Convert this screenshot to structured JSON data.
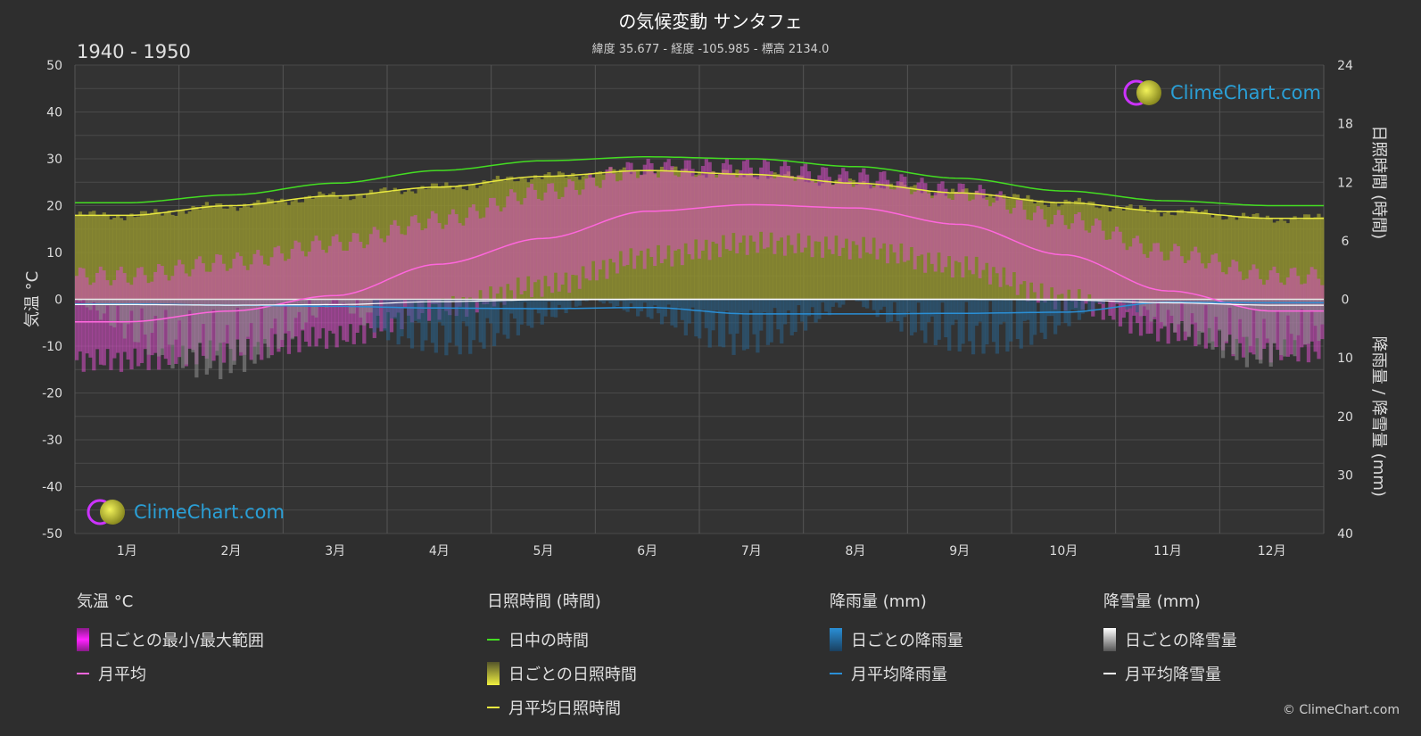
{
  "header": {
    "title": "の気候変動 サンタフェ",
    "subtitle": "緯度 35.677 - 経度 -105.985 - 標高 2134.0",
    "period": "1940 - 1950"
  },
  "watermark": {
    "text": "ClimeChart.com"
  },
  "copyright": "© ClimeChart.com",
  "legend": {
    "temperature": {
      "title": "気温 °C",
      "items": [
        "日ごとの最小/最大範囲",
        "月平均"
      ]
    },
    "sunshine": {
      "title": "日照時間 (時間)",
      "items": [
        "日中の時間",
        "日ごとの日照時間",
        "月平均日照時間"
      ]
    },
    "rain": {
      "title": "降雨量 (mm)",
      "items": [
        "日ごとの降雨量",
        "月平均降雨量"
      ]
    },
    "snow": {
      "title": "降雪量 (mm)",
      "items": [
        "日ごとの降雪量",
        "月平均降雪量"
      ]
    }
  },
  "colors": {
    "background": "#2e2e2e",
    "daylight": "#44dd22",
    "sunshine": "#e8e840",
    "temp_mean": "#ff66dd",
    "temp_range": "#dd22dd",
    "rain": "#2a8fd6",
    "snow": "#ffffff"
  },
  "chart_data": {
    "type": "line",
    "months": [
      "1月",
      "2月",
      "3月",
      "4月",
      "5月",
      "6月",
      "7月",
      "8月",
      "9月",
      "10月",
      "11月",
      "12月"
    ],
    "left_axis": {
      "label": "気温 °C",
      "ticks": [
        "50",
        "40",
        "30",
        "20",
        "10",
        "0",
        "-10",
        "-20",
        "-30",
        "-40",
        "-50"
      ],
      "ylim": [
        -50,
        50
      ]
    },
    "right_axis_top": {
      "label": "日照時間 (時間)",
      "ticks": [
        "24",
        "18",
        "12",
        "6",
        "0"
      ],
      "ylim": [
        0,
        24
      ]
    },
    "right_axis_bottom": {
      "label": "降雨量 / 降雪量 (mm)",
      "ticks": [
        "10",
        "20",
        "30",
        "40"
      ],
      "ylim": [
        0,
        40
      ]
    },
    "grid": true,
    "series": [
      {
        "name": "日中の時間",
        "axis": "sunshine",
        "values": [
          9.9,
          10.7,
          11.9,
          13.2,
          14.2,
          14.6,
          14.4,
          13.6,
          12.4,
          11.1,
          10.1,
          9.6
        ]
      },
      {
        "name": "月平均日照時間",
        "axis": "sunshine",
        "values": [
          8.6,
          9.6,
          10.6,
          11.5,
          12.6,
          13.2,
          12.8,
          11.9,
          10.9,
          9.9,
          9.0,
          8.3
        ]
      },
      {
        "name": "月平均",
        "axis": "temperature",
        "values": [
          -4.8,
          -2.5,
          0.8,
          7.5,
          13.0,
          18.8,
          20.2,
          19.5,
          16.0,
          9.5,
          1.8,
          -2.5
        ]
      },
      {
        "name": "日ごとの最小/最大範囲",
        "axis": "temperature",
        "min": [
          -13,
          -11,
          -8,
          -2,
          3,
          9,
          12,
          11,
          7,
          0,
          -7,
          -11
        ],
        "max": [
          5,
          8,
          12,
          17,
          23,
          28,
          28,
          26,
          23,
          17,
          10,
          5
        ]
      },
      {
        "name": "月平均降雨量",
        "axis": "precipitation",
        "values": [
          0.8,
          1.0,
          1.2,
          1.5,
          1.6,
          1.4,
          2.5,
          2.5,
          2.4,
          2.2,
          0.5,
          0.6
        ]
      },
      {
        "name": "月平均降雪量",
        "axis": "precipitation",
        "values": [
          0.9,
          1.0,
          0.9,
          0.4,
          0.1,
          0.0,
          0.0,
          0.0,
          0.0,
          0.1,
          0.6,
          1.0
        ]
      }
    ]
  }
}
